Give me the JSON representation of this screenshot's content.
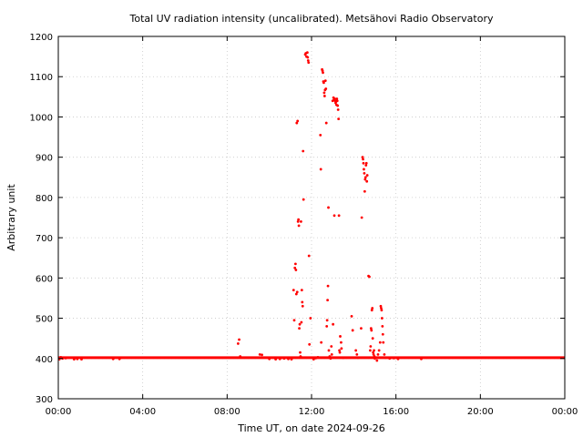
{
  "chart_data": {
    "type": "scatter",
    "title": "Total UV radiation intensity (uncalibrated). Metsähovi Radio Observatory",
    "xlabel": "Time UT, on date 2024-09-26",
    "ylabel": "Arbitrary unit",
    "xlim": [
      0,
      24
    ],
    "ylim": [
      300,
      1200
    ],
    "x_ticks": [
      {
        "value": 0,
        "label": "00:00"
      },
      {
        "value": 4,
        "label": "04:00"
      },
      {
        "value": 8,
        "label": "08:00"
      },
      {
        "value": 12,
        "label": "12:00"
      },
      {
        "value": 16,
        "label": "16:00"
      },
      {
        "value": 20,
        "label": "20:00"
      },
      {
        "value": 24,
        "label": "00:00"
      }
    ],
    "y_ticks": [
      {
        "value": 300,
        "label": "300"
      },
      {
        "value": 400,
        "label": "400"
      },
      {
        "value": 500,
        "label": "500"
      },
      {
        "value": 600,
        "label": "600"
      },
      {
        "value": 700,
        "label": "700"
      },
      {
        "value": 800,
        "label": "800"
      },
      {
        "value": 900,
        "label": "900"
      },
      {
        "value": 1000,
        "label": "1000"
      },
      {
        "value": 1100,
        "label": "1100"
      },
      {
        "value": 1200,
        "label": "1200"
      }
    ],
    "grid": true,
    "color": "#ff0000",
    "baseline": {
      "y": 402,
      "x_start": 0,
      "x_end": 24
    },
    "points": [
      [
        0.05,
        398
      ],
      [
        0.12,
        403
      ],
      [
        0.2,
        400
      ],
      [
        0.35,
        401
      ],
      [
        0.75,
        398
      ],
      [
        0.9,
        399
      ],
      [
        1.1,
        398
      ],
      [
        2.6,
        399
      ],
      [
        2.9,
        399
      ],
      [
        8.52,
        437
      ],
      [
        8.57,
        447
      ],
      [
        8.62,
        405
      ],
      [
        9.55,
        410
      ],
      [
        9.65,
        409
      ],
      [
        10.0,
        399
      ],
      [
        10.3,
        398
      ],
      [
        10.5,
        399
      ],
      [
        10.7,
        400
      ],
      [
        10.9,
        399
      ],
      [
        11.05,
        398
      ],
      [
        11.15,
        570
      ],
      [
        11.18,
        495
      ],
      [
        11.21,
        625
      ],
      [
        11.24,
        635
      ],
      [
        11.26,
        620
      ],
      [
        11.28,
        560
      ],
      [
        11.3,
        985
      ],
      [
        11.32,
        565
      ],
      [
        11.34,
        990
      ],
      [
        11.36,
        740
      ],
      [
        11.38,
        745
      ],
      [
        11.4,
        730
      ],
      [
        11.42,
        475
      ],
      [
        11.44,
        485
      ],
      [
        11.46,
        415
      ],
      [
        11.48,
        405
      ],
      [
        11.5,
        740
      ],
      [
        11.52,
        490
      ],
      [
        11.54,
        570
      ],
      [
        11.56,
        540
      ],
      [
        11.58,
        530
      ],
      [
        11.6,
        915
      ],
      [
        11.62,
        795
      ],
      [
        11.7,
        1155
      ],
      [
        11.73,
        1158
      ],
      [
        11.76,
        1150
      ],
      [
        11.8,
        1160
      ],
      [
        11.82,
        1148
      ],
      [
        11.84,
        1140
      ],
      [
        11.86,
        1135
      ],
      [
        11.88,
        655
      ],
      [
        11.9,
        435
      ],
      [
        11.95,
        500
      ],
      [
        12.0,
        402
      ],
      [
        12.1,
        398
      ],
      [
        12.2,
        401
      ],
      [
        12.3,
        403
      ],
      [
        12.42,
        955
      ],
      [
        12.44,
        870
      ],
      [
        12.46,
        440
      ],
      [
        12.5,
        1118
      ],
      [
        12.52,
        1115
      ],
      [
        12.54,
        1110
      ],
      [
        12.56,
        1088
      ],
      [
        12.58,
        1085
      ],
      [
        12.6,
        1060
      ],
      [
        12.62,
        1052
      ],
      [
        12.64,
        1067
      ],
      [
        12.66,
        1090
      ],
      [
        12.68,
        1070
      ],
      [
        12.7,
        985
      ],
      [
        12.72,
        480
      ],
      [
        12.74,
        495
      ],
      [
        12.76,
        545
      ],
      [
        12.78,
        580
      ],
      [
        12.8,
        775
      ],
      [
        12.82,
        420
      ],
      [
        12.86,
        405
      ],
      [
        12.9,
        400
      ],
      [
        12.94,
        430
      ],
      [
        12.96,
        410
      ],
      [
        13.0,
        1040
      ],
      [
        13.02,
        485
      ],
      [
        13.04,
        1048
      ],
      [
        13.06,
        1042
      ],
      [
        13.08,
        755
      ],
      [
        13.1,
        1045
      ],
      [
        13.12,
        1040
      ],
      [
        13.14,
        1035
      ],
      [
        13.16,
        1038
      ],
      [
        13.18,
        1030
      ],
      [
        13.2,
        1045
      ],
      [
        13.22,
        1040
      ],
      [
        13.24,
        1028
      ],
      [
        13.26,
        1018
      ],
      [
        13.28,
        995
      ],
      [
        13.3,
        755
      ],
      [
        13.32,
        420
      ],
      [
        13.34,
        415
      ],
      [
        13.36,
        455
      ],
      [
        13.4,
        440
      ],
      [
        13.42,
        425
      ],
      [
        13.5,
        402
      ],
      [
        13.9,
        505
      ],
      [
        13.95,
        470
      ],
      [
        14.1,
        420
      ],
      [
        14.15,
        410
      ],
      [
        14.2,
        402
      ],
      [
        14.35,
        475
      ],
      [
        14.38,
        750
      ],
      [
        14.42,
        900
      ],
      [
        14.44,
        895
      ],
      [
        14.46,
        885
      ],
      [
        14.48,
        870
      ],
      [
        14.5,
        860
      ],
      [
        14.52,
        815
      ],
      [
        14.54,
        845
      ],
      [
        14.56,
        850
      ],
      [
        14.58,
        880
      ],
      [
        14.6,
        885
      ],
      [
        14.62,
        840
      ],
      [
        14.64,
        855
      ],
      [
        14.7,
        605
      ],
      [
        14.74,
        603
      ],
      [
        14.78,
        420
      ],
      [
        14.8,
        430
      ],
      [
        14.82,
        475
      ],
      [
        14.84,
        470
      ],
      [
        14.86,
        520
      ],
      [
        14.88,
        525
      ],
      [
        14.9,
        450
      ],
      [
        14.92,
        415
      ],
      [
        14.94,
        410
      ],
      [
        14.96,
        420
      ],
      [
        14.98,
        405
      ],
      [
        15.0,
        400
      ],
      [
        15.1,
        395
      ],
      [
        15.15,
        410
      ],
      [
        15.2,
        420
      ],
      [
        15.25,
        440
      ],
      [
        15.28,
        530
      ],
      [
        15.3,
        525
      ],
      [
        15.32,
        520
      ],
      [
        15.34,
        500
      ],
      [
        15.36,
        480
      ],
      [
        15.38,
        460
      ],
      [
        15.4,
        440
      ],
      [
        15.45,
        410
      ],
      [
        15.5,
        402
      ],
      [
        15.7,
        400
      ],
      [
        15.9,
        401
      ],
      [
        16.1,
        399
      ],
      [
        17.2,
        399
      ]
    ]
  }
}
